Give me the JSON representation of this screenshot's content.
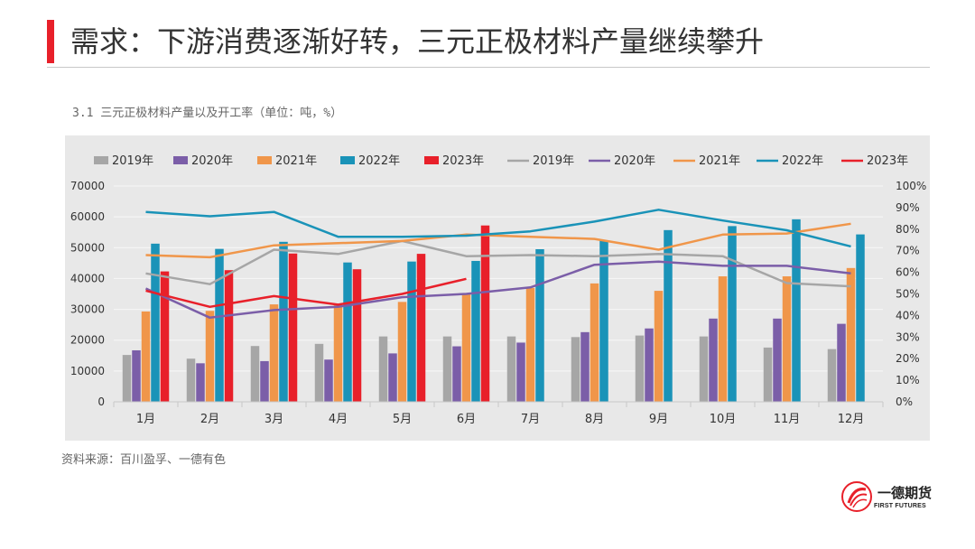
{
  "header": {
    "title": "需求：下游消费逐渐好转，三元正极材料产量继续攀升"
  },
  "caption": "3.1 三元正极材料产量以及开工率（单位：吨，%）",
  "source": "资料来源：百川盈孚、一德有色",
  "logo": {
    "name": "一德期货",
    "sub": "FIRST FUTURES"
  },
  "colors": {
    "accent": "#e8202a",
    "s2019": "#a6a6a6",
    "s2020": "#7b5ea8",
    "s2021": "#f0964a",
    "s2022": "#1a93b8",
    "s2023": "#e8202a"
  },
  "chart_data": {
    "type": "bar+line",
    "categories": [
      "1月",
      "2月",
      "3月",
      "4月",
      "5月",
      "6月",
      "7月",
      "8月",
      "9月",
      "10月",
      "11月",
      "12月"
    ],
    "left_axis": {
      "ylim": [
        0,
        70000
      ],
      "ticks": [
        "0",
        "10000",
        "20000",
        "30000",
        "40000",
        "50000",
        "60000",
        "70000"
      ]
    },
    "right_axis": {
      "ylim": [
        0,
        100
      ],
      "ticks": [
        "0%",
        "10%",
        "20%",
        "30%",
        "40%",
        "50%",
        "60%",
        "70%",
        "80%",
        "90%",
        "100%"
      ]
    },
    "bar_series": [
      {
        "name": "2019年",
        "color": "#a6a6a6",
        "values": [
          15200,
          14000,
          18100,
          18800,
          21200,
          21200,
          21200,
          21000,
          21500,
          21200,
          17600,
          17100
        ]
      },
      {
        "name": "2020年",
        "color": "#7b5ea8",
        "values": [
          16700,
          12500,
          13200,
          13700,
          15700,
          18000,
          19200,
          22600,
          23800,
          27000,
          27000,
          25300
        ]
      },
      {
        "name": "2021年",
        "color": "#f0964a",
        "values": [
          29300,
          29500,
          31600,
          31400,
          32400,
          34900,
          36900,
          38400,
          36000,
          40700,
          40700,
          43400
        ]
      },
      {
        "name": "2022年",
        "color": "#1a93b8",
        "values": [
          51300,
          49600,
          51900,
          45200,
          45500,
          45700,
          49500,
          52400,
          55700,
          57000,
          59200,
          54300
        ]
      },
      {
        "name": "2023年",
        "color": "#e8202a",
        "values": [
          42300,
          42700,
          48100,
          43000,
          48000,
          57200
        ]
      }
    ],
    "line_series": [
      {
        "name": "2019年",
        "color": "#a6a6a6",
        "values": [
          59.5,
          54.5,
          70.5,
          68.5,
          74.5,
          67.5,
          68,
          67.5,
          68.5,
          67.5,
          55,
          53.5
        ]
      },
      {
        "name": "2020年",
        "color": "#7b5ea8",
        "values": [
          52.5,
          39,
          42.5,
          44,
          48.5,
          50,
          53,
          63.5,
          65,
          63,
          63,
          59.5
        ]
      },
      {
        "name": "2021年",
        "color": "#f0964a",
        "values": [
          68,
          67,
          72.5,
          73.5,
          74.5,
          77.5,
          76.5,
          75.5,
          70.5,
          77.5,
          78,
          82.5
        ]
      },
      {
        "name": "2022年",
        "color": "#1a93b8",
        "values": [
          88,
          86,
          88,
          76.5,
          76.5,
          77,
          79,
          83.5,
          89,
          84,
          79.5,
          72
        ]
      },
      {
        "name": "2023年",
        "color": "#e8202a",
        "values": [
          51.5,
          44,
          49,
          45,
          50,
          57
        ]
      }
    ],
    "legend_position": "top",
    "grid": true
  }
}
